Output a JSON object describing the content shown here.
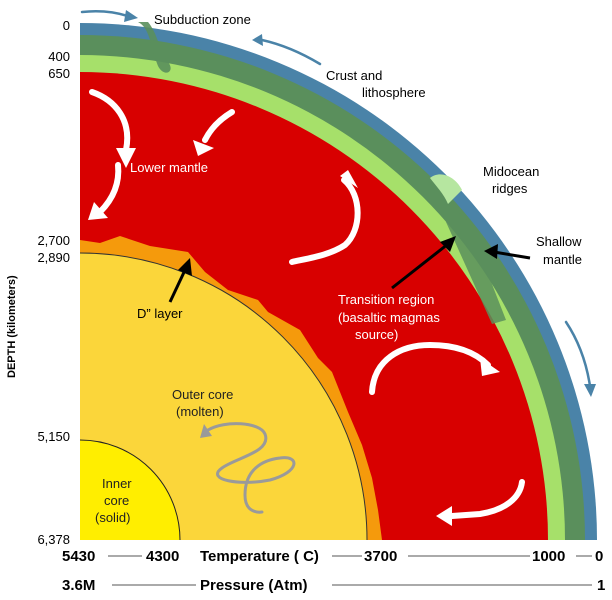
{
  "labels": {
    "subduction_zone": "Subduction zone",
    "crust_line1": "Crust and",
    "crust_line2": "lithosphere",
    "midocean_line1": "Midocean",
    "midocean_line2": "ridges",
    "shallow_line1": "Shallow",
    "shallow_line2": "mantle",
    "lower_mantle": "Lower mantle",
    "transition_line1": "Transition region",
    "transition_line2": "(basaltic magmas",
    "transition_line3": "source)",
    "d_layer": "D” layer",
    "outer_core_line1": "Outer core",
    "outer_core_line2": "(molten)",
    "inner_core_line1": "Inner",
    "inner_core_line2": "core",
    "inner_core_line3": "(solid)"
  },
  "depth_axis": {
    "title": "DEPTH (kilometers)",
    "ticks": [
      "0",
      "400",
      "650",
      "2,700",
      "2,890",
      "5,150",
      "6,378"
    ]
  },
  "temperature": {
    "title": "Temperature ( C)",
    "values": [
      "5430",
      "4300",
      "3700",
      "1000",
      "0"
    ]
  },
  "pressure": {
    "title": "Pressure (Atm)",
    "values": [
      "3.6M",
      "1"
    ]
  },
  "colors": {
    "crust": "#4a83a8",
    "lithosphere": "#5a8f5c",
    "shallow_mantle": "#a6e06a",
    "lower_mantle": "#d80000",
    "d_layer": "#f59a0c",
    "outer_core": "#fbd63a",
    "inner_core": "#ffee00",
    "arrow_blue": "#4a83a8"
  }
}
